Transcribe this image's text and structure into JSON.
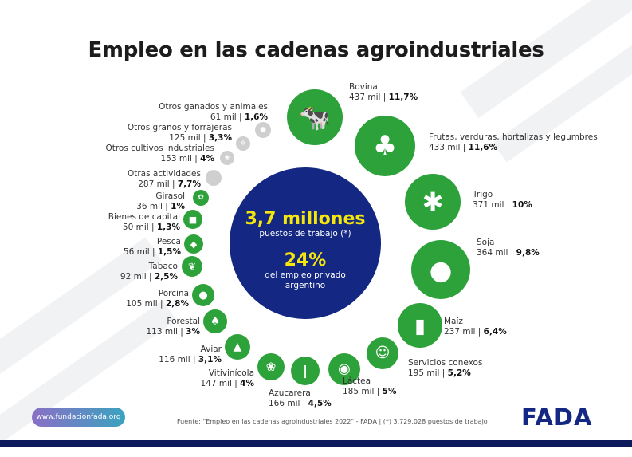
{
  "title": "Empleo en las cadenas agroindustriales",
  "center": {
    "total": "3,7 millones",
    "total_label": "puestos de trabajo (*)",
    "share": "24%",
    "share_label_1": "del empleo privado",
    "share_label_2": "argentino"
  },
  "colors": {
    "green": "#2ea23a",
    "gray": "#cfcfcf",
    "navy": "#132783",
    "yellow": "#f5e60c"
  },
  "chains": [
    {
      "name": "Bovina",
      "jobs": "437 mil",
      "share": "11,7%",
      "icon": "cow-icon"
    },
    {
      "name": "Frutas, verduras, hortalizas y legumbres",
      "jobs": "433 mil",
      "share": "11,6%",
      "icon": "fruit-vegetable-icon"
    },
    {
      "name": "Trigo",
      "jobs": "371 mil",
      "share": "10%",
      "icon": "wheat-icon"
    },
    {
      "name": "Soja",
      "jobs": "364 mil",
      "share": "9,8%",
      "icon": "soybean-icon"
    },
    {
      "name": "Maíz",
      "jobs": "237 mil",
      "share": "6,4%",
      "icon": "corn-icon"
    },
    {
      "name": "Servicios conexos",
      "jobs": "195 mil",
      "share": "5,2%",
      "icon": "people-icon"
    },
    {
      "name": "Láctea",
      "jobs": "185 mil",
      "share": "5%",
      "icon": "dairy-cow-icon"
    },
    {
      "name": "Azucarera",
      "jobs": "166 mil",
      "share": "4,5%",
      "icon": "sugarcane-icon"
    },
    {
      "name": "Vitivinícola",
      "jobs": "147 mil",
      "share": "4%",
      "icon": "grapes-icon"
    },
    {
      "name": "Aviar",
      "jobs": "116 mil",
      "share": "3,1%",
      "icon": "chicken-icon"
    },
    {
      "name": "Forestal",
      "jobs": "113 mil",
      "share": "3%",
      "icon": "trees-icon"
    },
    {
      "name": "Porcina",
      "jobs": "105 mil",
      "share": "2,8%",
      "icon": "pig-icon"
    },
    {
      "name": "Tabaco",
      "jobs": "92 mil",
      "share": "2,5%",
      "icon": "tobacco-leaf-icon"
    },
    {
      "name": "Pesca",
      "jobs": "56 mil",
      "share": "1,5%",
      "icon": "fish-icon"
    },
    {
      "name": "Bienes de capital",
      "jobs": "50 mil",
      "share": "1,3%",
      "icon": "tractor-icon"
    },
    {
      "name": "Girasol",
      "jobs": "36 mil",
      "share": "1%",
      "icon": "sunflower-icon"
    },
    {
      "name": "Otras actividades",
      "jobs": "287 mil",
      "share": "7,7%",
      "icon": "none"
    },
    {
      "name": "Otros cultivos industriales",
      "jobs": "153 mil",
      "share": "4%",
      "icon": "cotton-icon"
    },
    {
      "name": "Otros granos y forrajeras",
      "jobs": "125 mil",
      "share": "3,3%",
      "icon": "grains-icon"
    },
    {
      "name": "Otros ganados y animales",
      "jobs": "61 mil",
      "share": "1,6%",
      "icon": "sheep-icon"
    }
  ],
  "footer": {
    "url": "www.fundacionfada.org",
    "source": "Fuente: \"Empleo en las cadenas agroindustriales 2022\" - FADA | (*) 3.729.028 puestos de trabajo",
    "logo": "FADA"
  }
}
